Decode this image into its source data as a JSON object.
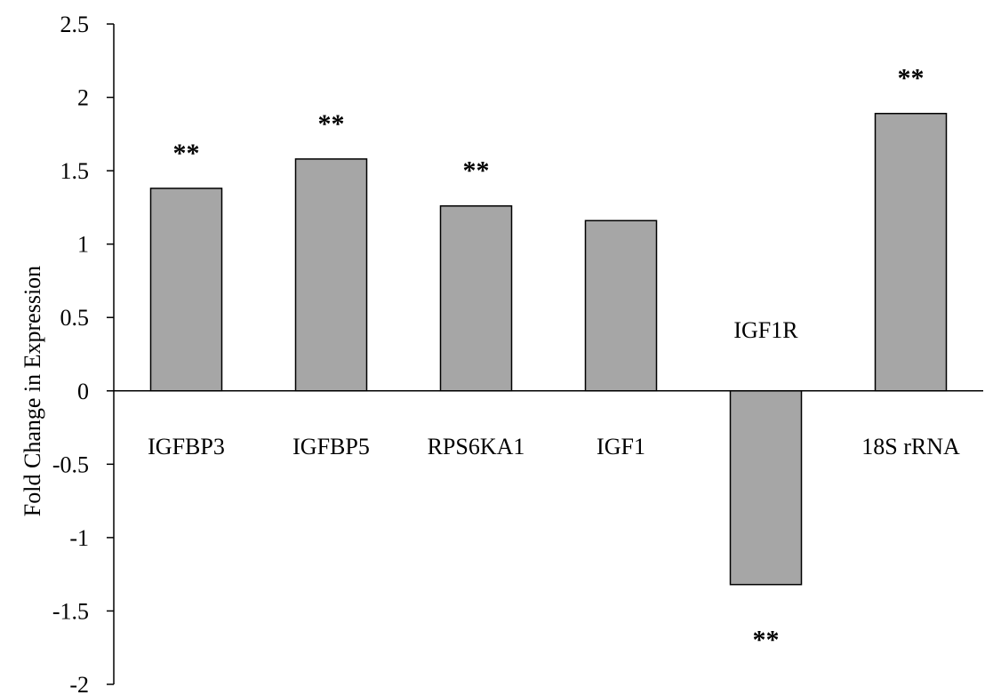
{
  "chart_data": {
    "type": "bar",
    "title": "",
    "xlabel": "",
    "ylabel": "Fold Change in Expression",
    "ylim": [
      -2,
      2.5
    ],
    "yticks": [
      2.5,
      2,
      1.5,
      1,
      0.5,
      0,
      -0.5,
      -1,
      -1.5,
      -2
    ],
    "ytick_labels": [
      "2.5",
      "2",
      "1.5",
      "1",
      "0.5",
      "0",
      "-0.5",
      "-1",
      "-1.5",
      "-2"
    ],
    "grid": false,
    "legend": "none",
    "bar_color": "#a6a6a6",
    "bar_edge_color": "#000000",
    "categories": [
      "IGFBP3",
      "IGFBP5",
      "RPS6KA1",
      "IGF1",
      "IGF1R",
      "18S rRNA"
    ],
    "values": [
      1.38,
      1.58,
      1.26,
      1.16,
      -1.32,
      1.89
    ],
    "annotations": [
      "**",
      "**",
      "**",
      "",
      "**",
      "**"
    ]
  }
}
